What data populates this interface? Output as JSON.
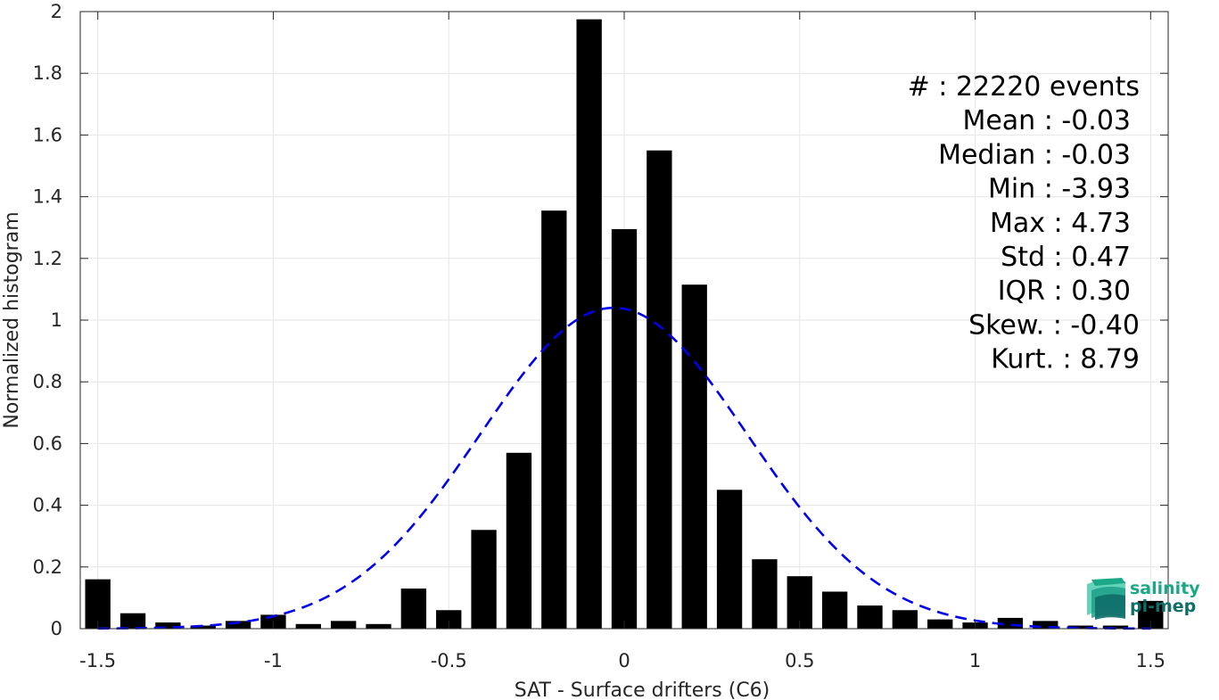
{
  "chart_data": {
    "type": "bar",
    "title": "",
    "xlabel": "SAT - Surface drifters (C6)",
    "ylabel": "Normalized histogram",
    "xlim": [
      -1.55,
      1.55
    ],
    "ylim": [
      0,
      2
    ],
    "grid": true,
    "xticks": [
      -1.5,
      -1,
      -0.5,
      0,
      0.5,
      1,
      1.5
    ],
    "xtick_labels": [
      "-1.5",
      "-1",
      "-0.5",
      "0",
      "0.5",
      "1",
      "1.5"
    ],
    "yticks": [
      0,
      0.2,
      0.4,
      0.6,
      0.8,
      1,
      1.2,
      1.4,
      1.6,
      1.8,
      2
    ],
    "ytick_labels": [
      "0",
      "0.2",
      "0.4",
      "0.6",
      "0.8",
      "1",
      "1.2",
      "1.4",
      "1.6",
      "1.8",
      "2"
    ],
    "bar_color": "#000000",
    "bins": [
      {
        "x": -1.5,
        "value": 0.16
      },
      {
        "x": -1.4,
        "value": 0.05
      },
      {
        "x": -1.3,
        "value": 0.02
      },
      {
        "x": -1.2,
        "value": 0.01
      },
      {
        "x": -1.1,
        "value": 0.025
      },
      {
        "x": -1.0,
        "value": 0.045
      },
      {
        "x": -0.9,
        "value": 0.015
      },
      {
        "x": -0.8,
        "value": 0.025
      },
      {
        "x": -0.7,
        "value": 0.015
      },
      {
        "x": -0.6,
        "value": 0.13
      },
      {
        "x": -0.5,
        "value": 0.06
      },
      {
        "x": -0.4,
        "value": 0.32
      },
      {
        "x": -0.3,
        "value": 0.57
      },
      {
        "x": -0.2,
        "value": 1.355
      },
      {
        "x": -0.1,
        "value": 1.975
      },
      {
        "x": 0.0,
        "value": 1.295
      },
      {
        "x": 0.1,
        "value": 1.55
      },
      {
        "x": 0.2,
        "value": 1.115
      },
      {
        "x": 0.3,
        "value": 0.45
      },
      {
        "x": 0.4,
        "value": 0.225
      },
      {
        "x": 0.5,
        "value": 0.17
      },
      {
        "x": 0.6,
        "value": 0.12
      },
      {
        "x": 0.7,
        "value": 0.075
      },
      {
        "x": 0.8,
        "value": 0.06
      },
      {
        "x": 0.9,
        "value": 0.03
      },
      {
        "x": 1.0,
        "value": 0.02
      },
      {
        "x": 1.1,
        "value": 0.035
      },
      {
        "x": 1.2,
        "value": 0.025
      },
      {
        "x": 1.3,
        "value": 0.01
      },
      {
        "x": 1.4,
        "value": 0.01
      },
      {
        "x": 1.5,
        "value": 0.09
      }
    ],
    "bin_width": 0.1,
    "fit_curve": {
      "type": "gaussian",
      "style": "dashed",
      "color": "#0000ee",
      "peak": 1.04,
      "center": -0.03,
      "sigma": 0.38,
      "x_range": [
        -1.5,
        1.5
      ]
    },
    "stats": [
      {
        "label": "#  : 22220 events"
      },
      {
        "label": "Mean : -0.03"
      },
      {
        "label": "Median : -0.03"
      },
      {
        "label": "Min : -3.93"
      },
      {
        "label": "Max : 4.73"
      },
      {
        "label": "Std : 0.47"
      },
      {
        "label": "IQR : 0.30"
      },
      {
        "label": "Skew. : -0.40"
      },
      {
        "label": "Kurt. : 8.79"
      }
    ]
  },
  "logo": {
    "line1": "salinity",
    "line2": "pi-mep",
    "color1": "#1aa886",
    "color2": "#0e6f68"
  }
}
